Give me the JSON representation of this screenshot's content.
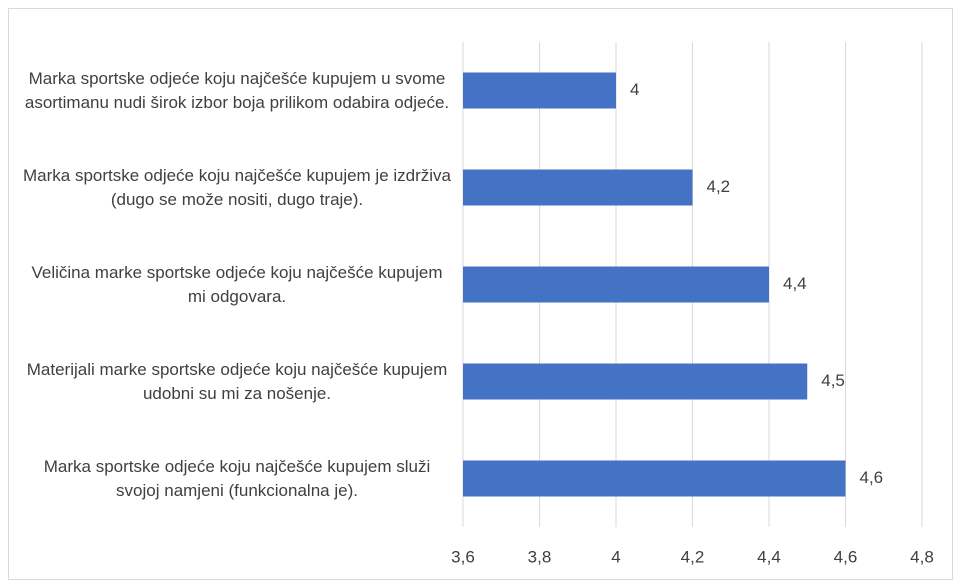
{
  "chart_data": {
    "type": "bar",
    "orientation": "horizontal",
    "categories": [
      "Marka sportske odjeće koju najčešće kupujem u svome asortimanu nudi širok izbor boja prilikom odabira odjeće.",
      "Marka sportske odjeće koju najčešće kupujem je izdrživa (dugo se može nositi, dugo traje).",
      "Veličina marke sportske odjeće koju najčešće kupujem mi odgovara.",
      "Materijali marke sportske odjeće koju najčešće kupujem udobni su mi za nošenje.",
      "Marka sportske odjeće koju najčešće kupujem služi svojoj namjeni (funkcionalna je)."
    ],
    "values": [
      4,
      4.2,
      4.4,
      4.5,
      4.6
    ],
    "value_labels": [
      "4",
      "4,2",
      "4,4",
      "4,5",
      "4,6"
    ],
    "color": "#4472c4",
    "xlim": [
      3.6,
      4.8
    ],
    "xticks": [
      {
        "value": 3.6,
        "label": "3,6"
      },
      {
        "value": 3.8,
        "label": "3,8"
      },
      4,
      {
        "value": 4.2,
        "label": "4,2"
      },
      {
        "value": 4.4,
        "label": "4,4"
      },
      {
        "value": 4.6,
        "label": "4,6"
      },
      {
        "value": 4.8,
        "label": "4,8"
      }
    ],
    "grid": true
  }
}
